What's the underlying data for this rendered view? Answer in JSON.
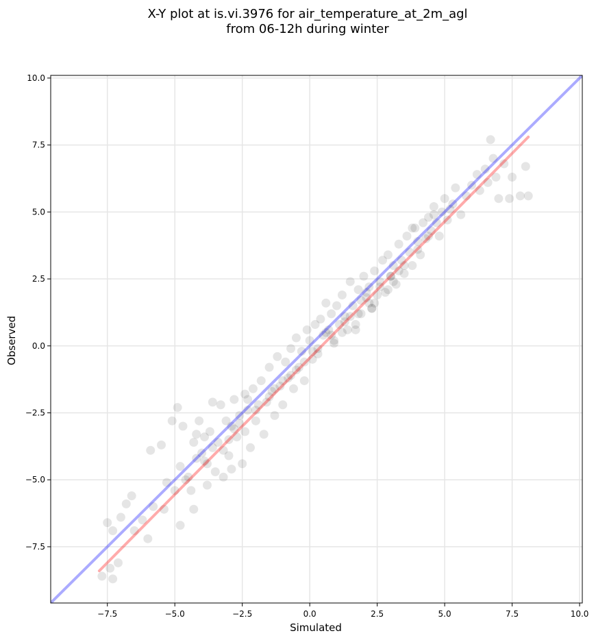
{
  "chart_data": {
    "type": "scatter",
    "title_line1": "X-Y plot at is.vi.3976 for air_temperature_at_2m_agl",
    "title_line2": "from 06-12h during winter",
    "xlabel": "Simulated",
    "ylabel": "Observed",
    "xlim": [
      -9.6,
      10.1
    ],
    "ylim": [
      -9.6,
      10.1
    ],
    "xticks": [
      -7.5,
      -5.0,
      -2.5,
      0.0,
      2.5,
      5.0,
      7.5,
      10.0
    ],
    "yticks": [
      -7.5,
      -5.0,
      -2.5,
      0.0,
      2.5,
      5.0,
      7.5,
      10.0
    ],
    "xtick_labels": [
      "−7.5",
      "−5.0",
      "−2.5",
      "0.0",
      "2.5",
      "5.0",
      "7.5",
      "10.0"
    ],
    "ytick_labels": [
      "−7.5",
      "−5.0",
      "−2.5",
      "0.0",
      "2.5",
      "5.0",
      "7.5",
      "10.0"
    ],
    "grid": true,
    "marker_color": "#000000",
    "identity_line_color": "#0000ff",
    "fit_line_color": "#ff0000",
    "identity_line": {
      "x": [
        -9.6,
        10.1
      ],
      "y": [
        -9.6,
        10.1
      ]
    },
    "fit_line": {
      "x": [
        -7.8,
        8.1
      ],
      "y": [
        -8.4,
        7.8
      ]
    },
    "points": {
      "x": [
        -7.7,
        -7.5,
        -7.4,
        -7.3,
        -7.3,
        -7.1,
        -7.0,
        -6.8,
        -6.6,
        -6.5,
        -6.2,
        -6.0,
        -5.9,
        -5.8,
        -5.5,
        -5.4,
        -5.3,
        -5.1,
        -5.0,
        -4.9,
        -4.8,
        -4.8,
        -4.7,
        -4.6,
        -4.5,
        -4.4,
        -4.3,
        -4.3,
        -4.2,
        -4.1,
        -4.0,
        -3.9,
        -3.8,
        -3.8,
        -3.7,
        -3.6,
        -3.5,
        -3.4,
        -3.3,
        -3.2,
        -3.2,
        -3.1,
        -3.0,
        -2.9,
        -2.9,
        -2.8,
        -2.7,
        -2.6,
        -2.5,
        -2.4,
        -2.4,
        -2.3,
        -2.2,
        -2.1,
        -2.0,
        -1.9,
        -1.8,
        -1.7,
        -1.6,
        -1.5,
        -1.4,
        -1.3,
        -1.2,
        -1.1,
        -1.0,
        -0.9,
        -0.8,
        -0.7,
        -0.6,
        -0.5,
        -0.4,
        -0.3,
        -0.2,
        -0.1,
        0.0,
        0.1,
        0.2,
        0.3,
        0.4,
        0.5,
        0.6,
        0.7,
        0.8,
        0.9,
        1.0,
        1.1,
        1.2,
        1.3,
        1.4,
        1.5,
        1.6,
        1.7,
        1.8,
        1.9,
        2.0,
        2.1,
        2.2,
        2.3,
        2.4,
        2.5,
        2.6,
        2.7,
        2.8,
        2.9,
        3.0,
        3.1,
        3.2,
        3.3,
        3.4,
        3.5,
        3.6,
        3.7,
        3.8,
        3.9,
        4.0,
        4.1,
        4.2,
        4.3,
        4.4,
        4.5,
        4.6,
        4.7,
        4.8,
        4.9,
        5.0,
        5.1,
        5.2,
        5.4,
        5.6,
        5.8,
        6.0,
        6.2,
        6.3,
        6.5,
        6.6,
        6.7,
        6.8,
        6.9,
        7.0,
        7.2,
        7.4,
        7.5,
        7.8,
        8.0,
        8.1,
        -3.6,
        -3.0,
        -2.6,
        -2.0,
        -1.5,
        -1.0,
        -0.5,
        0.3,
        0.8,
        1.3,
        1.8,
        2.2,
        2.6,
        3.1,
        3.5,
        4.0,
        4.4,
        1.7,
        2.1,
        1.9,
        2.3,
        0.9,
        1.2,
        -0.7,
        -2.3,
        -4.2,
        3.8,
        4.6,
        5.3,
        -3.9,
        -2.8,
        0.1,
        1.5,
        2.9,
        3.3,
        -1.3,
        -0.2,
        0.6,
        2.4,
        3.0
      ],
      "y": [
        -8.6,
        -6.6,
        -8.3,
        -6.9,
        -8.7,
        -8.1,
        -6.4,
        -5.9,
        -5.6,
        -6.9,
        -6.5,
        -7.2,
        -3.9,
        -6.0,
        -3.7,
        -6.1,
        -5.1,
        -2.8,
        -5.4,
        -2.3,
        -4.5,
        -6.7,
        -3.0,
        -5.0,
        -4.9,
        -5.4,
        -3.6,
        -6.1,
        -4.2,
        -2.8,
        -4.0,
        -3.4,
        -5.2,
        -4.4,
        -3.2,
        -2.1,
        -4.7,
        -3.6,
        -2.2,
        -3.9,
        -4.9,
        -2.8,
        -4.1,
        -3.0,
        -4.6,
        -2.0,
        -3.4,
        -2.6,
        -4.4,
        -1.8,
        -3.2,
        -2.4,
        -3.8,
        -1.6,
        -2.8,
        -2.2,
        -1.3,
        -3.3,
        -2.1,
        -0.8,
        -1.7,
        -2.6,
        -0.4,
        -1.5,
        -2.2,
        -0.6,
        -1.2,
        -0.1,
        -1.6,
        0.3,
        -0.8,
        -0.2,
        -1.3,
        0.6,
        0.2,
        -0.5,
        0.8,
        -0.1,
        1.0,
        0.4,
        1.6,
        0.6,
        1.2,
        0.1,
        1.5,
        0.8,
        1.9,
        1.1,
        0.6,
        2.4,
        1.5,
        0.8,
        2.1,
        1.2,
        2.6,
        1.8,
        2.2,
        1.4,
        2.8,
        1.9,
        2.4,
        3.2,
        2.0,
        3.4,
        2.6,
        3.0,
        2.3,
        3.8,
        3.2,
        2.7,
        4.1,
        3.5,
        3.0,
        4.4,
        3.9,
        3.4,
        4.6,
        4.0,
        4.8,
        4.3,
        5.2,
        4.6,
        4.1,
        5.0,
        5.5,
        4.7,
        5.1,
        5.9,
        4.9,
        5.6,
        6.0,
        6.4,
        5.8,
        6.6,
        6.1,
        7.7,
        7.0,
        6.3,
        5.5,
        6.8,
        5.5,
        6.3,
        5.6,
        6.7,
        5.6,
        -3.8,
        -3.5,
        -2.9,
        -2.4,
        -1.9,
        -1.3,
        -0.9,
        -0.3,
        0.4,
        0.9,
        1.2,
        1.6,
        2.2,
        2.4,
        3.0,
        3.6,
        4.1,
        0.6,
        2.0,
        1.7,
        1.4,
        0.2,
        0.5,
        -1.1,
        -2.0,
        -3.3,
        4.4,
        4.9,
        5.3,
        -4.3,
        -3.1,
        -0.2,
        1.1,
        2.1,
        2.8,
        -1.6,
        -0.6,
        0.5,
        1.6,
        2.6
      ]
    }
  }
}
